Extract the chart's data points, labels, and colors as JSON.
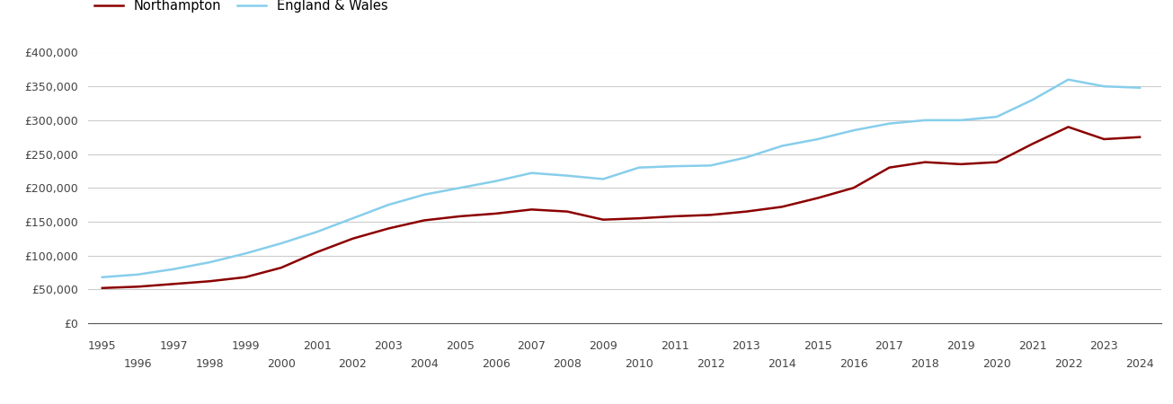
{
  "years": [
    1995,
    1996,
    1997,
    1998,
    1999,
    2000,
    2001,
    2002,
    2003,
    2004,
    2005,
    2006,
    2007,
    2008,
    2009,
    2010,
    2011,
    2012,
    2013,
    2014,
    2015,
    2016,
    2017,
    2018,
    2019,
    2020,
    2021,
    2022,
    2023,
    2024
  ],
  "northampton": [
    52000,
    54000,
    58000,
    62000,
    68000,
    82000,
    105000,
    125000,
    140000,
    152000,
    158000,
    162000,
    168000,
    165000,
    153000,
    155000,
    158000,
    160000,
    165000,
    172000,
    185000,
    200000,
    230000,
    238000,
    235000,
    238000,
    265000,
    290000,
    272000,
    275000
  ],
  "england_wales": [
    68000,
    72000,
    80000,
    90000,
    103000,
    118000,
    135000,
    155000,
    175000,
    190000,
    200000,
    210000,
    222000,
    218000,
    213000,
    230000,
    232000,
    233000,
    245000,
    262000,
    272000,
    285000,
    295000,
    300000,
    300000,
    305000,
    330000,
    360000,
    350000,
    348000
  ],
  "northampton_color": "#8b0000",
  "england_wales_color": "#87ceeb",
  "background_color": "#ffffff",
  "grid_color": "#cccccc",
  "ylim": [
    0,
    400000
  ],
  "yticks": [
    0,
    50000,
    100000,
    150000,
    200000,
    250000,
    300000,
    350000,
    400000
  ],
  "legend_northampton": "Northampton",
  "legend_england_wales": "England & Wales",
  "line_width": 1.8,
  "xlim_left": 1994.6,
  "xlim_right": 2024.6
}
